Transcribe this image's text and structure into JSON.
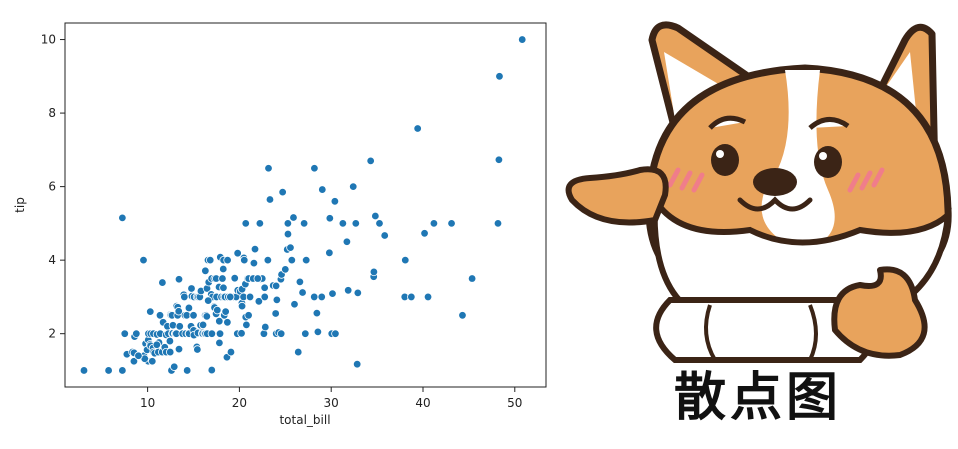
{
  "chart_data": {
    "type": "scatter",
    "title": "",
    "xlabel": "total_bill",
    "ylabel": "tip",
    "xlim": [
      1.0,
      53.4
    ],
    "ylim": [
      0.55,
      10.45
    ],
    "xticks": [
      10,
      20,
      30,
      40,
      50
    ],
    "yticks": [
      2,
      4,
      6,
      8,
      10
    ],
    "grid": false,
    "marker_color": "#1f77b4",
    "points": [
      [
        3.07,
        1.0
      ],
      [
        5.75,
        1.0
      ],
      [
        7.25,
        1.0
      ],
      [
        16.99,
        1.01
      ],
      [
        10.07,
        1.25
      ],
      [
        14.31,
        1.0
      ],
      [
        12.6,
        1.0
      ],
      [
        7.25,
        5.15
      ],
      [
        9.55,
        4.0
      ],
      [
        7.51,
        2.0
      ],
      [
        7.74,
        1.44
      ],
      [
        8.35,
        1.5
      ],
      [
        8.51,
        1.25
      ],
      [
        8.52,
        1.48
      ],
      [
        8.58,
        1.92
      ],
      [
        8.77,
        2.0
      ],
      [
        9.6,
        1.4
      ],
      [
        9.68,
        1.32
      ],
      [
        9.78,
        1.73
      ],
      [
        9.94,
        1.56
      ],
      [
        10.07,
        1.83
      ],
      [
        10.09,
        2.0
      ],
      [
        10.27,
        1.71
      ],
      [
        10.29,
        2.6
      ],
      [
        10.33,
        1.67
      ],
      [
        10.34,
        2.0
      ],
      [
        10.51,
        1.25
      ],
      [
        10.59,
        1.61
      ],
      [
        10.63,
        2.0
      ],
      [
        10.65,
        1.5
      ],
      [
        10.77,
        1.47
      ],
      [
        11.02,
        1.98
      ],
      [
        11.17,
        1.5
      ],
      [
        11.24,
        1.76
      ],
      [
        11.35,
        2.5
      ],
      [
        11.38,
        2.0
      ],
      [
        11.59,
        1.5
      ],
      [
        11.61,
        3.39
      ],
      [
        11.69,
        2.31
      ],
      [
        11.87,
        1.63
      ],
      [
        12.02,
        1.97
      ],
      [
        12.03,
        1.5
      ],
      [
        12.16,
        2.2
      ],
      [
        12.26,
        2.0
      ],
      [
        12.43,
        1.8
      ],
      [
        12.46,
        1.5
      ],
      [
        12.48,
        2.52
      ],
      [
        12.54,
        2.5
      ],
      [
        12.66,
        2.5
      ],
      [
        12.69,
        2.0
      ],
      [
        12.74,
        2.01
      ],
      [
        12.76,
        2.23
      ],
      [
        12.9,
        1.1
      ],
      [
        13.0,
        2.0
      ],
      [
        13.03,
        2.0
      ],
      [
        13.13,
        2.0
      ],
      [
        13.16,
        2.75
      ],
      [
        13.27,
        2.5
      ],
      [
        13.28,
        2.72
      ],
      [
        13.39,
        2.61
      ],
      [
        13.42,
        3.48
      ],
      [
        13.42,
        1.58
      ],
      [
        13.81,
        2.0
      ],
      [
        13.94,
        3.06
      ],
      [
        14.0,
        3.0
      ],
      [
        14.07,
        2.5
      ],
      [
        14.15,
        2.0
      ],
      [
        14.26,
        2.5
      ],
      [
        14.48,
        2.0
      ],
      [
        14.52,
        2.0
      ],
      [
        14.73,
        2.2
      ],
      [
        14.78,
        3.23
      ],
      [
        14.83,
        3.02
      ],
      [
        15.01,
        2.09
      ],
      [
        15.04,
        1.96
      ],
      [
        15.06,
        3.0
      ],
      [
        15.36,
        1.64
      ],
      [
        15.38,
        3.0
      ],
      [
        15.42,
        1.57
      ],
      [
        15.48,
        2.02
      ],
      [
        15.53,
        3.0
      ],
      [
        15.69,
        3.0
      ],
      [
        15.77,
        2.23
      ],
      [
        15.81,
        3.16
      ],
      [
        15.95,
        2.0
      ],
      [
        15.98,
        2.03
      ],
      [
        16.0,
        2.0
      ],
      [
        16.04,
        2.24
      ],
      [
        16.21,
        2.0
      ],
      [
        16.27,
        2.5
      ],
      [
        16.29,
        3.71
      ],
      [
        16.31,
        2.0
      ],
      [
        16.4,
        2.5
      ],
      [
        16.45,
        2.47
      ],
      [
        16.47,
        3.23
      ],
      [
        16.49,
        2.0
      ],
      [
        16.58,
        4.0
      ],
      [
        16.66,
        3.4
      ],
      [
        16.82,
        4.0
      ],
      [
        16.93,
        3.07
      ],
      [
        16.97,
        3.5
      ],
      [
        17.07,
        3.0
      ],
      [
        17.26,
        2.74
      ],
      [
        17.29,
        2.71
      ],
      [
        17.31,
        3.5
      ],
      [
        17.46,
        2.54
      ],
      [
        17.47,
        3.5
      ],
      [
        17.51,
        3.0
      ],
      [
        17.59,
        2.64
      ],
      [
        17.78,
        3.27
      ],
      [
        17.81,
        2.34
      ],
      [
        17.82,
        1.75
      ],
      [
        17.89,
        2.0
      ],
      [
        17.92,
        4.08
      ],
      [
        18.04,
        3.0
      ],
      [
        18.15,
        3.5
      ],
      [
        18.24,
        3.76
      ],
      [
        18.26,
        3.25
      ],
      [
        18.28,
        4.0
      ],
      [
        18.29,
        3.0
      ],
      [
        18.35,
        2.5
      ],
      [
        18.43,
        3.0
      ],
      [
        18.64,
        1.36
      ],
      [
        18.69,
        2.31
      ],
      [
        18.71,
        4.0
      ],
      [
        18.78,
        3.0
      ],
      [
        19.08,
        1.5
      ],
      [
        19.44,
        3.0
      ],
      [
        19.49,
        3.51
      ],
      [
        19.65,
        3.0
      ],
      [
        19.77,
        2.0
      ],
      [
        19.81,
        4.19
      ],
      [
        19.82,
        3.18
      ],
      [
        20.08,
        3.15
      ],
      [
        20.23,
        2.01
      ],
      [
        20.27,
        2.83
      ],
      [
        20.29,
        2.75
      ],
      [
        20.29,
        3.21
      ],
      [
        20.45,
        3.0
      ],
      [
        20.49,
        4.06
      ],
      [
        20.53,
        4.0
      ],
      [
        20.65,
        3.35
      ],
      [
        20.69,
        2.45
      ],
      [
        20.69,
        5.0
      ],
      [
        20.76,
        2.24
      ],
      [
        20.9,
        3.5
      ],
      [
        21.01,
        3.5
      ],
      [
        21.16,
        3.0
      ],
      [
        21.5,
        3.5
      ],
      [
        21.58,
        3.92
      ],
      [
        21.7,
        4.3
      ],
      [
        22.12,
        2.88
      ],
      [
        22.23,
        5.0
      ],
      [
        22.42,
        3.48
      ],
      [
        22.49,
        3.5
      ],
      [
        22.67,
        2.0
      ],
      [
        22.75,
        3.25
      ],
      [
        22.76,
        3.0
      ],
      [
        22.82,
        2.18
      ],
      [
        23.1,
        4.0
      ],
      [
        23.17,
        6.5
      ],
      [
        23.33,
        5.65
      ],
      [
        23.68,
        3.31
      ],
      [
        23.95,
        2.55
      ],
      [
        24.01,
        2.0
      ],
      [
        24.08,
        2.92
      ],
      [
        24.27,
        2.03
      ],
      [
        24.52,
        3.48
      ],
      [
        24.55,
        2.0
      ],
      [
        24.59,
        3.61
      ],
      [
        24.71,
        5.85
      ],
      [
        25.0,
        3.75
      ],
      [
        25.21,
        4.29
      ],
      [
        25.28,
        5.0
      ],
      [
        25.29,
        4.71
      ],
      [
        25.56,
        4.34
      ],
      [
        25.71,
        4.0
      ],
      [
        25.89,
        5.16
      ],
      [
        26.41,
        1.5
      ],
      [
        26.59,
        3.41
      ],
      [
        26.86,
        3.14
      ],
      [
        26.88,
        3.12
      ],
      [
        27.05,
        5.0
      ],
      [
        27.18,
        2.0
      ],
      [
        27.2,
        4.0
      ],
      [
        27.28,
        4.0
      ],
      [
        28.15,
        3.0
      ],
      [
        28.17,
        6.5
      ],
      [
        28.44,
        2.56
      ],
      [
        28.55,
        2.05
      ],
      [
        28.97,
        3.0
      ],
      [
        29.03,
        5.92
      ],
      [
        29.8,
        4.2
      ],
      [
        29.85,
        5.14
      ],
      [
        30.06,
        2.0
      ],
      [
        30.14,
        3.09
      ],
      [
        30.4,
        5.6
      ],
      [
        30.46,
        2.0
      ],
      [
        31.27,
        5.0
      ],
      [
        31.71,
        4.5
      ],
      [
        31.85,
        3.18
      ],
      [
        32.4,
        6.0
      ],
      [
        32.68,
        5.0
      ],
      [
        32.83,
        1.17
      ],
      [
        32.9,
        3.11
      ],
      [
        34.3,
        6.7
      ],
      [
        34.63,
        3.55
      ],
      [
        34.65,
        3.68
      ],
      [
        34.81,
        5.2
      ],
      [
        35.26,
        5.0
      ],
      [
        35.83,
        4.67
      ],
      [
        38.01,
        3.0
      ],
      [
        38.07,
        4.0
      ],
      [
        38.73,
        3.0
      ],
      [
        39.42,
        7.58
      ],
      [
        40.17,
        4.73
      ],
      [
        40.55,
        3.0
      ],
      [
        41.19,
        5.0
      ],
      [
        43.11,
        5.0
      ],
      [
        44.3,
        2.5
      ],
      [
        45.35,
        3.5
      ],
      [
        48.17,
        5.0
      ],
      [
        48.27,
        6.73
      ],
      [
        48.33,
        9.0
      ],
      [
        50.81,
        10.0
      ],
      [
        22.0,
        3.5
      ],
      [
        19.0,
        3.0
      ],
      [
        15.0,
        2.5
      ],
      [
        13.5,
        2.2
      ],
      [
        11.0,
        1.7
      ],
      [
        9.0,
        1.4
      ],
      [
        18.5,
        2.6
      ],
      [
        21.0,
        2.5
      ],
      [
        24.0,
        3.3
      ],
      [
        26.0,
        2.8
      ],
      [
        17.0,
        2.0
      ],
      [
        14.5,
        2.7
      ],
      [
        16.6,
        2.9
      ]
    ]
  },
  "mascot": {
    "icon": "corgi-dog-pointing",
    "caption": "散点图"
  }
}
